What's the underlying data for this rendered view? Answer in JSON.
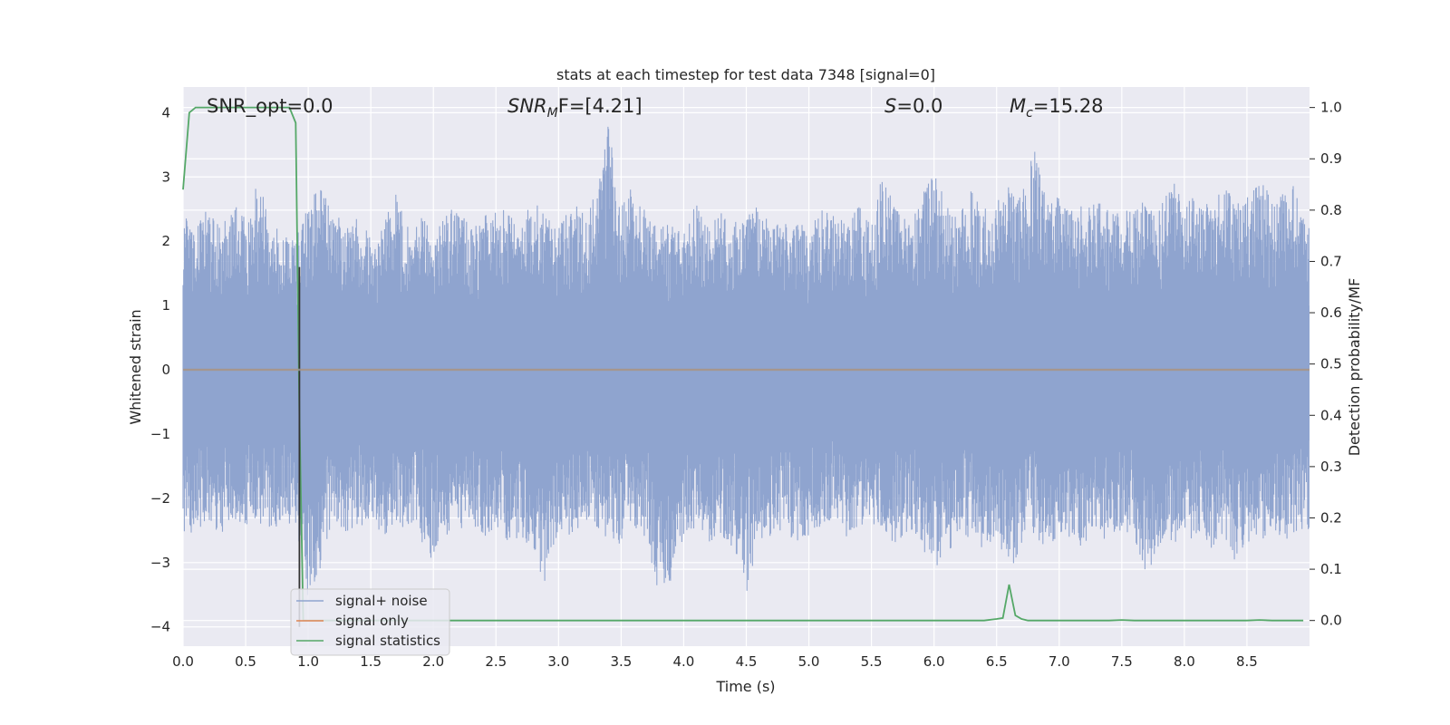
{
  "chart_data": {
    "type": "line",
    "title": "stats at each timestep for test data 7348 [signal=0]",
    "xlabel": "Time (s)",
    "ylabel_left": "Whitened strain",
    "ylabel_right": "Detection probability/MF",
    "xlim": [
      0.0,
      9.0
    ],
    "ylim_left": [
      -4.3,
      4.4
    ],
    "ylim_right": [
      -0.05,
      1.04
    ],
    "x_ticks": [
      "0.0",
      "0.5",
      "1.0",
      "1.5",
      "2.0",
      "2.5",
      "3.0",
      "3.5",
      "4.0",
      "4.5",
      "5.0",
      "5.5",
      "6.0",
      "6.5",
      "7.0",
      "7.5",
      "8.0",
      "8.5"
    ],
    "y_ticks_left": [
      "4",
      "3",
      "2",
      "1",
      "0",
      "−1",
      "−2",
      "−3",
      "−4"
    ],
    "y_ticks_right": [
      "1.0",
      "0.9",
      "0.8",
      "0.7",
      "0.6",
      "0.5",
      "0.4",
      "0.3",
      "0.2",
      "0.1",
      "0.0"
    ],
    "grid": true,
    "annotations": {
      "snr_opt": "SNR_opt=0.0",
      "snr_mf_base": "SNR",
      "snr_mf_sub": "M",
      "snr_mf_rest": "F=[4.21]",
      "s_base": "S",
      "s_rest": "=0.0",
      "mc_base": "M",
      "mc_sub": "c",
      "mc_rest": "=15.28"
    },
    "legend_position": "lower-left",
    "series": [
      {
        "name": "signal+ noise",
        "axis": "left",
        "color": "#8fa4cf",
        "description_note": "",
        "noise_envelope": {
          "x": [
            0.0,
            0.1,
            0.2,
            0.3,
            0.4,
            0.5,
            0.6,
            0.7,
            0.8,
            0.9,
            1.0,
            1.1,
            1.2,
            1.3,
            1.4,
            1.5,
            1.6,
            1.7,
            1.8,
            1.9,
            2.0,
            2.1,
            2.2,
            2.3,
            2.4,
            2.5,
            2.6,
            2.7,
            2.8,
            2.9,
            3.0,
            3.1,
            3.2,
            3.3,
            3.4,
            3.5,
            3.6,
            3.7,
            3.8,
            3.9,
            4.0,
            4.1,
            4.2,
            4.3,
            4.4,
            4.5,
            4.6,
            4.7,
            4.8,
            4.9,
            5.0,
            5.1,
            5.2,
            5.3,
            5.4,
            5.5,
            5.6,
            5.7,
            5.8,
            5.9,
            6.0,
            6.1,
            6.2,
            6.3,
            6.4,
            6.5,
            6.6,
            6.7,
            6.8,
            6.9,
            7.0,
            7.1,
            7.2,
            7.3,
            7.4,
            7.5,
            7.6,
            7.7,
            7.8,
            7.9,
            8.0,
            8.1,
            8.2,
            8.3,
            8.4,
            8.5,
            8.6,
            8.7,
            8.8,
            8.9,
            9.0
          ],
          "upper": [
            2.4,
            2.3,
            2.5,
            2.2,
            2.6,
            2.4,
            3.0,
            2.3,
            2.1,
            2.0,
            2.7,
            3.1,
            2.5,
            2.2,
            2.4,
            2.1,
            2.3,
            2.8,
            2.2,
            2.5,
            2.2,
            2.4,
            2.6,
            2.3,
            2.4,
            2.5,
            2.6,
            2.2,
            2.8,
            2.4,
            2.2,
            2.6,
            2.5,
            2.7,
            3.9,
            2.6,
            2.9,
            2.5,
            2.4,
            2.3,
            2.1,
            2.6,
            2.2,
            2.5,
            2.3,
            2.4,
            2.6,
            2.2,
            2.5,
            2.3,
            2.2,
            2.5,
            2.4,
            2.3,
            2.6,
            2.4,
            3.1,
            2.5,
            2.3,
            2.7,
            3.1,
            2.6,
            2.4,
            2.8,
            2.5,
            2.6,
            2.9,
            2.7,
            3.5,
            2.6,
            2.8,
            2.5,
            2.6,
            2.7,
            2.5,
            2.4,
            2.6,
            2.7,
            2.5,
            3.0,
            2.6,
            2.8,
            2.7,
            2.9,
            2.8,
            2.7,
            3.1,
            2.6,
            2.8,
            2.9,
            2.4
          ],
          "lower": [
            -2.6,
            -2.5,
            -2.4,
            -2.7,
            -2.3,
            -2.5,
            -2.4,
            -2.6,
            -2.3,
            -2.5,
            -3.7,
            -3.1,
            -2.4,
            -2.6,
            -2.5,
            -2.3,
            -2.6,
            -2.4,
            -2.5,
            -2.7,
            -3.0,
            -2.6,
            -2.5,
            -2.4,
            -2.6,
            -2.5,
            -2.7,
            -2.6,
            -2.9,
            -3.4,
            -2.5,
            -2.6,
            -2.4,
            -2.7,
            -2.6,
            -2.8,
            -2.5,
            -2.7,
            -3.5,
            -3.3,
            -2.6,
            -2.5,
            -2.7,
            -2.6,
            -2.8,
            -3.5,
            -2.7,
            -2.6,
            -2.5,
            -2.7,
            -2.6,
            -2.5,
            -2.4,
            -2.6,
            -2.5,
            -2.4,
            -2.6,
            -2.7,
            -2.5,
            -2.8,
            -3.1,
            -2.9,
            -2.6,
            -2.7,
            -2.8,
            -2.6,
            -3.2,
            -2.7,
            -2.6,
            -2.8,
            -2.7,
            -2.6,
            -2.8,
            -2.6,
            -2.7,
            -2.5,
            -2.6,
            -3.4,
            -2.7,
            -2.8,
            -2.6,
            -2.7,
            -2.8,
            -2.6,
            -3.1,
            -2.7,
            -2.8,
            -2.6,
            -2.7,
            -2.5,
            -2.5
          ]
        }
      },
      {
        "name": "signal only",
        "axis": "left",
        "color": "#dd8452",
        "x": [
          0.0,
          9.0
        ],
        "y": [
          0.0,
          0.0
        ]
      },
      {
        "name": "signal statistics",
        "axis": "right",
        "color": "#55a868",
        "x": [
          0.0,
          0.05,
          0.1,
          0.2,
          0.3,
          0.4,
          0.5,
          0.6,
          0.7,
          0.8,
          0.85,
          0.9,
          0.93,
          0.96,
          1.0,
          1.1,
          1.5,
          2.0,
          2.5,
          3.0,
          3.5,
          4.0,
          4.5,
          5.0,
          5.5,
          6.0,
          6.4,
          6.5,
          6.55,
          6.6,
          6.65,
          6.7,
          6.75,
          7.0,
          7.4,
          7.5,
          7.6,
          8.0,
          8.5,
          8.6,
          8.7,
          8.95
        ],
        "y": [
          0.84,
          0.99,
          1.0,
          1.0,
          1.0,
          1.0,
          1.0,
          1.0,
          1.0,
          1.0,
          1.0,
          0.97,
          0.4,
          0.0,
          0.0,
          0.0,
          0.0,
          0.0,
          0.0,
          0.0,
          0.0,
          0.0,
          0.0,
          0.0,
          0.0,
          0.0,
          0.0,
          0.003,
          0.005,
          0.07,
          0.01,
          0.003,
          0.0,
          0.0,
          0.0,
          0.001,
          0.0,
          0.0,
          0.0,
          0.001,
          0.0,
          0.0
        ]
      },
      {
        "name": "",
        "axis": "left",
        "color": "#333333",
        "x": [
          0.93,
          0.93
        ],
        "y": [
          1.6,
          -4.0
        ]
      }
    ]
  }
}
